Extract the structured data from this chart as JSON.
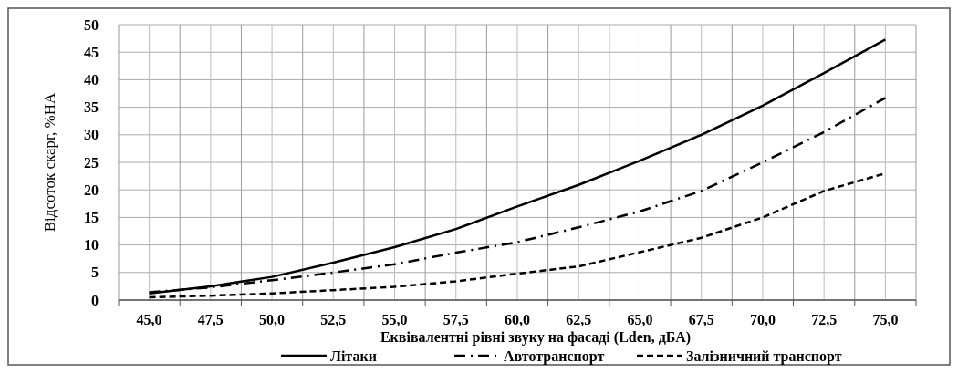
{
  "chart_data": {
    "type": "line",
    "xlabel": "Еквівалентні рівні звуку на фасаді (Lden, дБА)",
    "ylabel": "Відсоток скарг, %НА",
    "categories": [
      "45,0",
      "47,5",
      "50,0",
      "52,5",
      "55,0",
      "57,5",
      "60,0",
      "62,5",
      "65,0",
      "67,5",
      "70,0",
      "72,5",
      "75,0"
    ],
    "series": [
      {
        "name": "Літаки",
        "color": "#000000",
        "line_style": "solid",
        "values": [
          1.2,
          2.5,
          4.2,
          6.8,
          9.6,
          12.9,
          17.0,
          20.9,
          25.3,
          30.0,
          35.3,
          41.2,
          47.3
        ]
      },
      {
        "name": "Автотранспорт",
        "color": "#000000",
        "line_style": "dashdot",
        "values": [
          1.4,
          2.3,
          3.6,
          5.0,
          6.5,
          8.6,
          10.5,
          13.2,
          16.1,
          19.8,
          25.0,
          30.5,
          36.7
        ]
      },
      {
        "name": "Залізничний транспорт",
        "color": "#000000",
        "line_style": "dashed",
        "values": [
          0.5,
          0.8,
          1.2,
          1.8,
          2.4,
          3.4,
          4.8,
          6.1,
          8.7,
          11.3,
          15.0,
          19.8,
          23.0
        ]
      }
    ],
    "ylim": [
      0,
      50
    ],
    "yticks": [
      0,
      5,
      10,
      15,
      20,
      25,
      30,
      35,
      40,
      45,
      50
    ],
    "grid": true,
    "legend": "bottom"
  }
}
